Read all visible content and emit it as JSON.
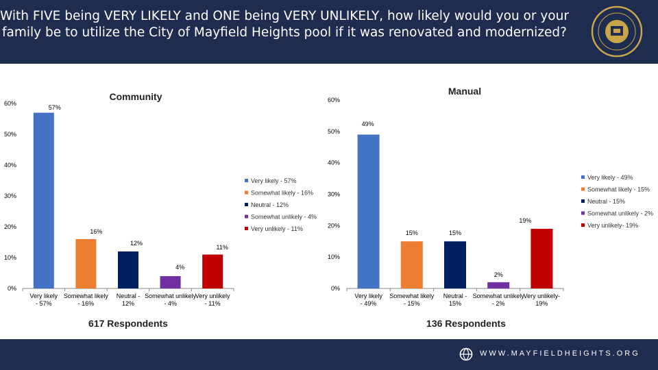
{
  "title": "With FIVE being VERY LIKELY and ONE being VERY UNLIKELY, how likely would you or your family be to utilize the City of Mayfield Heights pool if it was renovated and modernized?",
  "seal_text": "THE CITY OF MAYFIELD HEIGHTS OHIO",
  "footer": {
    "website": "WWW.MAYFIELDHEIGHTS.ORG"
  },
  "colors": [
    "#4472c4",
    "#ed7d31",
    "#002060",
    "#7030a0",
    "#c00000"
  ],
  "chart_data": [
    {
      "type": "bar",
      "title": "Community",
      "subtitle": "617 Respondents",
      "categories": [
        "Very likely - 57%",
        "Somewhat likely - 16%",
        "Neutral - 12%",
        "Somewhat unlikely - 4%",
        "Very unlikely - 11%"
      ],
      "values": [
        57,
        16,
        12,
        4,
        11
      ],
      "data_labels": [
        "57%",
        "16%",
        "12%",
        "4%",
        "11%"
      ],
      "legend": [
        "Very likely - 57%",
        "Somewhat likely - 16%",
        "Neutral - 12%",
        "Somewhat unlikely - 4%",
        "Very unlikely - 11%"
      ],
      "yticks": [
        "0%",
        "10%",
        "20%",
        "30%",
        "40%",
        "50%",
        "60%"
      ],
      "ylim": [
        0,
        60
      ],
      "legend_position": "right",
      "grid": false
    },
    {
      "type": "bar",
      "title": "Manual",
      "subtitle": "136 Respondents",
      "categories": [
        "Very likely - 49%",
        "Somewhat likely - 15%",
        "Neutral - 15%",
        "Somewhat unlikely - 2%",
        "Very unlikely- 19%"
      ],
      "values": [
        49,
        15,
        15,
        2,
        19
      ],
      "data_labels": [
        "49%",
        "15%",
        "15%",
        "2%",
        "19%"
      ],
      "legend": [
        "Very likely - 49%",
        "Somewhat likely - 15%",
        "Neutral - 15%",
        "Somewhat unlikely - 2%",
        "Very unlikely- 19%"
      ],
      "yticks": [
        "0%",
        "10%",
        "20%",
        "30%",
        "40%",
        "50%",
        "60%"
      ],
      "ylim": [
        0,
        60
      ],
      "legend_position": "right",
      "grid": false
    }
  ]
}
